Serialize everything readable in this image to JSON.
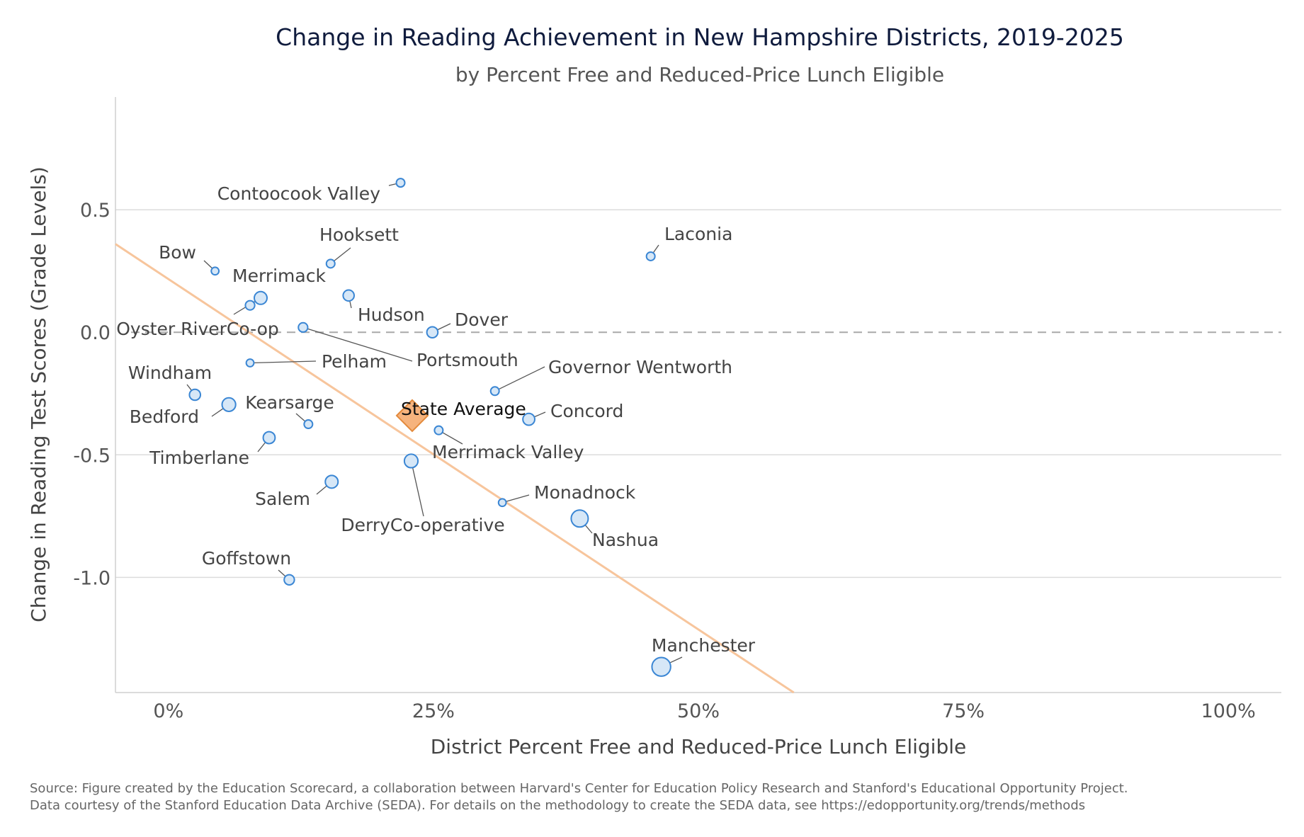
{
  "chart_data": {
    "type": "scatter",
    "title": "Change in Reading Achievement in New Hampshire Districts, 2019-2025",
    "subtitle": "by Percent Free and Reduced-Price Lunch Eligible",
    "xlabel": "District Percent Free and Reduced-Price Lunch Eligible",
    "ylabel": "Change in Reading Test Scores (Grade Levels)",
    "xlim": [
      -0.05,
      1.05
    ],
    "ylim": [
      -1.47,
      0.96
    ],
    "x_ticks": [
      0,
      0.25,
      0.5,
      0.75,
      1.0
    ],
    "x_tick_labels": [
      "0%",
      "25%",
      "50%",
      "75%",
      "100%"
    ],
    "y_ticks": [
      0.5,
      0.0,
      -0.5,
      -1.0
    ],
    "y_tick_labels": [
      "0.5",
      "0.0",
      "-0.5",
      "-1.0"
    ],
    "reference_line_y": 0,
    "trend_line": {
      "x": [
        -0.05,
        0.59
      ],
      "y": [
        0.36,
        -1.47
      ],
      "color": "#f7c59c"
    },
    "point_color": "#d6e7f7",
    "point_stroke": "#3a86d4",
    "state_average": {
      "label": "State Average",
      "x": 0.23,
      "y": -0.34,
      "color": "#f6b37d",
      "stroke": "#e38a3c"
    },
    "points": [
      {
        "label": "Contoocook Valley",
        "x": 0.219,
        "y": 0.61,
        "size": 1.0
      },
      {
        "label": "Laconia",
        "x": 0.455,
        "y": 0.31,
        "size": 1.0
      },
      {
        "label": "Bow",
        "x": 0.044,
        "y": 0.25,
        "size": 0.9
      },
      {
        "label": "Hooksett",
        "x": 0.153,
        "y": 0.28,
        "size": 1.0
      },
      {
        "label": "Merrimack",
        "x": 0.087,
        "y": 0.14,
        "size": 1.5
      },
      {
        "label": "Oyster RiverCo-op",
        "x": 0.077,
        "y": 0.11,
        "size": 1.1
      },
      {
        "label": "Hudson",
        "x": 0.17,
        "y": 0.15,
        "size": 1.3
      },
      {
        "label": "Portsmouth",
        "x": 0.127,
        "y": 0.02,
        "size": 1.1
      },
      {
        "label": "Dover",
        "x": 0.249,
        "y": 0.0,
        "size": 1.3
      },
      {
        "label": "Pelham",
        "x": 0.077,
        "y": -0.125,
        "size": 0.9
      },
      {
        "label": "Governor Wentworth",
        "x": 0.308,
        "y": -0.24,
        "size": 1.0
      },
      {
        "label": "Windham",
        "x": 0.025,
        "y": -0.255,
        "size": 1.3
      },
      {
        "label": "Bedford",
        "x": 0.057,
        "y": -0.295,
        "size": 1.6
      },
      {
        "label": "Concord",
        "x": 0.34,
        "y": -0.355,
        "size": 1.4
      },
      {
        "label": "Kearsarge",
        "x": 0.132,
        "y": -0.375,
        "size": 1.0
      },
      {
        "label": "Merrimack Valley",
        "x": 0.255,
        "y": -0.4,
        "size": 1.0
      },
      {
        "label": "Timberlane",
        "x": 0.095,
        "y": -0.43,
        "size": 1.4
      },
      {
        "label": "DerryCo-operative",
        "x": 0.229,
        "y": -0.525,
        "size": 1.6
      },
      {
        "label": "Salem",
        "x": 0.154,
        "y": -0.61,
        "size": 1.5
      },
      {
        "label": "Monadnock",
        "x": 0.315,
        "y": -0.695,
        "size": 0.9
      },
      {
        "label": "Nashua",
        "x": 0.388,
        "y": -0.76,
        "size": 2.0
      },
      {
        "label": "Goffstown",
        "x": 0.114,
        "y": -1.01,
        "size": 1.2
      },
      {
        "label": "Manchester",
        "x": 0.465,
        "y": -1.365,
        "size": 2.2
      }
    ],
    "source": [
      "Source: Figure created by the Education Scorecard, a collaboration between Harvard's Center for Education Policy Research and Stanford's Educational Opportunity Project.",
      "Data courtesy of the Stanford Education Data Archive (SEDA). For details on the methodology to create the SEDA data, see https://edopportunity.org/trends/methods"
    ]
  }
}
